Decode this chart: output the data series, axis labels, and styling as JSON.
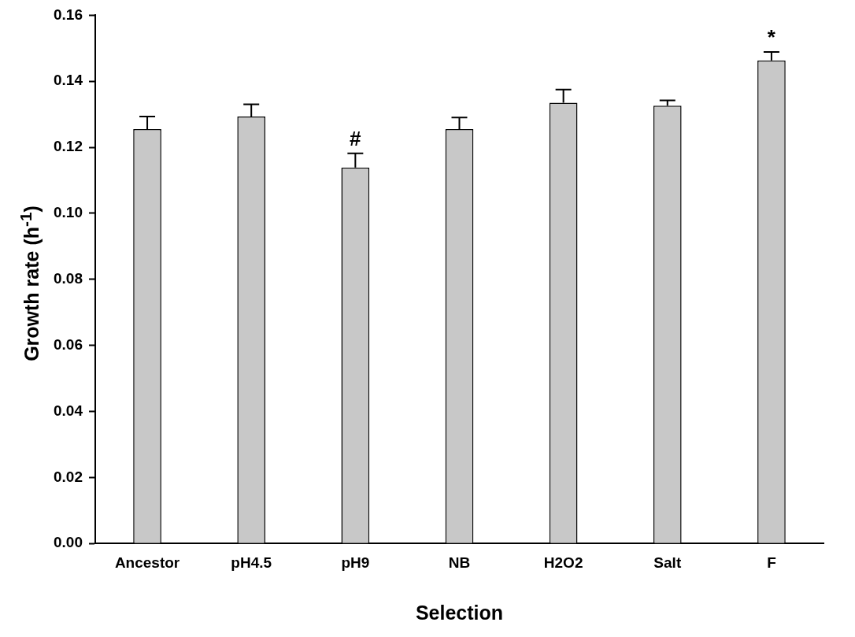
{
  "chart_data": {
    "type": "bar",
    "xlabel": "Selection",
    "ylabel": "Growth rate (h$^{-1}$)",
    "categories": [
      "Ancestor",
      "pH4.5",
      "pH9",
      "NB",
      "H2O2",
      "Salt",
      "F"
    ],
    "values": [
      0.1255,
      0.1293,
      0.1139,
      0.1255,
      0.1335,
      0.1326,
      0.1463
    ],
    "errors": [
      0.0038,
      0.0037,
      0.0043,
      0.0035,
      0.004,
      0.0016,
      0.0026
    ],
    "color": "#c8c8c8",
    "ylim": [
      0,
      0.16
    ],
    "yticks": [
      {
        "value": 0,
        "label": "0.00"
      },
      {
        "value": 0.02,
        "label": "0.02"
      },
      {
        "value": 0.04,
        "label": "0.04"
      },
      {
        "value": 0.06,
        "label": "0.06"
      },
      {
        "value": 0.08,
        "label": "0.08"
      },
      {
        "value": 0.1,
        "label": "0.10"
      },
      {
        "value": 0.12,
        "label": "0.12"
      },
      {
        "value": 0.14,
        "label": "0.14"
      },
      {
        "value": 0.16,
        "label": "0.16"
      }
    ],
    "annotations": [
      {
        "text": "#",
        "x": "pH9",
        "y": 0.1182
      },
      {
        "text": "*",
        "x": "F",
        "y": 0.1489
      }
    ],
    "grid": false,
    "legend": false
  }
}
